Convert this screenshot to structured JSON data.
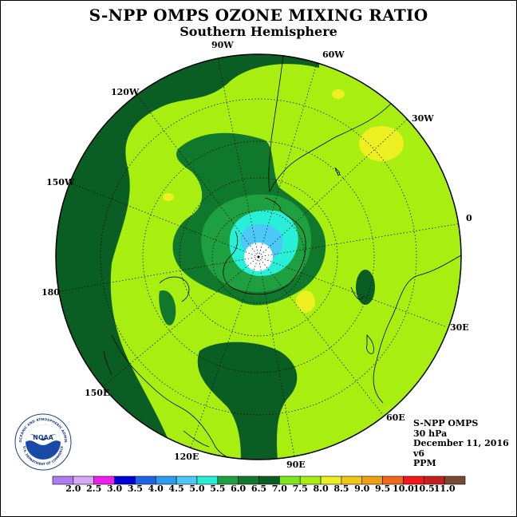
{
  "title": "S-NPP OMPS OZONE MIXING RATIO",
  "subtitle": "Southern Hemisphere",
  "longitude_labels": {
    "lon_90w": "90W",
    "lon_60w": "60W",
    "lon_120w": "120W",
    "lon_30w": "30W",
    "lon_150w": "150W",
    "lon_0": "0",
    "lon_180": "180",
    "lon_30e": "30E",
    "lon_150e": "150E",
    "lon_60e": "60E",
    "lon_120e": "120E",
    "lon_90e": "90E"
  },
  "info": {
    "instrument": "S-NPP OMPS",
    "pressure": "30 hPa",
    "date": "December 11, 2016",
    "version": "v6",
    "units": "PPM"
  },
  "logo": {
    "name": "NOAA",
    "ring_text": "NATIONAL OCEANIC AND ATMOSPHERIC ADMINISTRATION",
    "bottom_text": "U.S. DEPARTMENT OF COMMERCE"
  },
  "colorbar": {
    "ticks": [
      "2.0",
      "2.5",
      "3.0",
      "3.5",
      "4.0",
      "4.5",
      "5.0",
      "5.5",
      "6.0",
      "6.5",
      "7.0",
      "7.5",
      "8.0",
      "8.5",
      "9.0",
      "9.5",
      "10.0",
      "10.5",
      "11.0"
    ],
    "colors": [
      "#b07cf2",
      "#d6a8f5",
      "#f01cf0",
      "#0000d8",
      "#1c64e8",
      "#2e9cf2",
      "#4cc8f8",
      "#28f0d8",
      "#1ea040",
      "#10782c",
      "#0a5e24",
      "#7ee81c",
      "#a8ee10",
      "#ecf020",
      "#f0c814",
      "#f0a014",
      "#f06818",
      "#f01818",
      "#c82020",
      "#7a4a34"
    ]
  },
  "chart_data": {
    "type": "polar map",
    "projection": "polar stereographic",
    "hemisphere": "Southern",
    "field": "ozone mixing ratio",
    "units": "PPM",
    "pressure_level": "30 hPa",
    "date": "December 11, 2016",
    "levels": [
      2.0,
      2.5,
      3.0,
      3.5,
      4.0,
      4.5,
      5.0,
      5.5,
      6.0,
      6.5,
      7.0,
      7.5,
      8.0,
      8.5,
      9.0,
      9.5,
      10.0,
      10.5,
      11.0
    ],
    "longitudes": [
      "90W",
      "60W",
      "120W",
      "30W",
      "150W",
      "0",
      "180",
      "30E",
      "150E",
      "60E",
      "120E",
      "90E"
    ],
    "regions": [
      {
        "area": "polar center",
        "range": "no data"
      },
      {
        "area": "inner vortex core",
        "range": "5.0-5.5"
      },
      {
        "area": "vortex ring",
        "range": "5.5-6.0"
      },
      {
        "area": "collar",
        "range": "6.0-6.5"
      },
      {
        "area": "mid-latitude band",
        "range": "6.5-7.0"
      },
      {
        "area": "outer Pacific band",
        "range": "7.0-7.5"
      },
      {
        "area": "low latitudes",
        "range": "7.5-8.0"
      },
      {
        "area": "small patches near 30W",
        "range": "8.0-8.5"
      }
    ]
  }
}
